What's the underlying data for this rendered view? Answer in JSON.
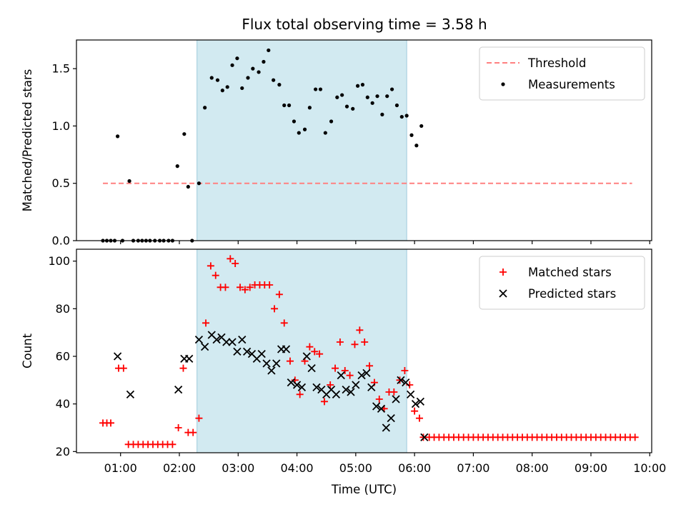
{
  "figure": {
    "title": "Flux total observing time = 3.58 h"
  },
  "chart_data": [
    {
      "type": "scatter",
      "title": "Flux total observing time = 3.58 h",
      "xlabel": "",
      "ylabel": "Matched/Predicted stars",
      "xlim": [
        "00:15",
        "10:02"
      ],
      "ylim": [
        0,
        1.75
      ],
      "yticks": [
        "0.0",
        "0.5",
        "1.0",
        "1.5"
      ],
      "grid": false,
      "legend_position": "top-right",
      "shaded_interval": {
        "start": "02:18",
        "end": "05:52",
        "color": "#add8e6"
      },
      "threshold": {
        "name": "Threshold",
        "value": 0.5,
        "x_start": "00:42",
        "x_end": "09:42",
        "color": "#ff8080"
      },
      "series": [
        {
          "name": "Measurements",
          "color": "#000000",
          "points": [
            [
              "00:42",
              0
            ],
            [
              "00:46",
              0
            ],
            [
              "00:50",
              0
            ],
            [
              "00:54",
              0
            ],
            [
              "00:57",
              0.91
            ],
            [
              "01:02",
              0
            ],
            [
              "01:09",
              0.52
            ],
            [
              "01:13",
              0
            ],
            [
              "01:18",
              0
            ],
            [
              "01:22",
              0
            ],
            [
              "01:26",
              0
            ],
            [
              "01:30",
              0
            ],
            [
              "01:35",
              0
            ],
            [
              "01:40",
              0
            ],
            [
              "01:44",
              0
            ],
            [
              "01:49",
              0
            ],
            [
              "01:53",
              0
            ],
            [
              "01:58",
              0.65
            ],
            [
              "02:05",
              0.93
            ],
            [
              "02:09",
              0.47
            ],
            [
              "02:13",
              0
            ],
            [
              "02:20",
              0.5
            ],
            [
              "02:26",
              1.16
            ],
            [
              "02:33",
              1.42
            ],
            [
              "02:39",
              1.4
            ],
            [
              "02:44",
              1.31
            ],
            [
              "02:49",
              1.34
            ],
            [
              "02:54",
              1.53
            ],
            [
              "02:59",
              1.59
            ],
            [
              "03:04",
              1.33
            ],
            [
              "03:10",
              1.42
            ],
            [
              "03:15",
              1.5
            ],
            [
              "03:21",
              1.47
            ],
            [
              "03:26",
              1.56
            ],
            [
              "03:31",
              1.66
            ],
            [
              "03:36",
              1.4
            ],
            [
              "03:42",
              1.36
            ],
            [
              "03:47",
              1.18
            ],
            [
              "03:52",
              1.18
            ],
            [
              "03:57",
              1.04
            ],
            [
              "04:02",
              0.94
            ],
            [
              "04:08",
              0.97
            ],
            [
              "04:13",
              1.16
            ],
            [
              "04:19",
              1.32
            ],
            [
              "04:24",
              1.32
            ],
            [
              "04:29",
              0.94
            ],
            [
              "04:35",
              1.04
            ],
            [
              "04:41",
              1.25
            ],
            [
              "04:46",
              1.27
            ],
            [
              "04:51",
              1.17
            ],
            [
              "04:57",
              1.15
            ],
            [
              "05:02",
              1.35
            ],
            [
              "05:07",
              1.36
            ],
            [
              "05:12",
              1.25
            ],
            [
              "05:17",
              1.2
            ],
            [
              "05:22",
              1.26
            ],
            [
              "05:27",
              1.1
            ],
            [
              "05:32",
              1.26
            ],
            [
              "05:37",
              1.32
            ],
            [
              "05:42",
              1.18
            ],
            [
              "05:47",
              1.08
            ],
            [
              "05:52",
              1.09
            ],
            [
              "05:57",
              0.92
            ],
            [
              "06:02",
              0.83
            ],
            [
              "06:07",
              1.0
            ]
          ]
        }
      ]
    },
    {
      "type": "scatter",
      "title": "",
      "xlabel": "Time (UTC)",
      "ylabel": "Count",
      "xlim": [
        "00:15",
        "10:02"
      ],
      "ylim": [
        19.5,
        105
      ],
      "yticks": [
        "20",
        "40",
        "60",
        "80",
        "100"
      ],
      "xticks": [
        "01:00",
        "02:00",
        "03:00",
        "04:00",
        "05:00",
        "06:00",
        "07:00",
        "08:00",
        "09:00",
        "10:00"
      ],
      "grid": false,
      "legend_position": "top-right",
      "shaded_interval": {
        "start": "02:18",
        "end": "05:52",
        "color": "#add8e6"
      },
      "series": [
        {
          "name": "Matched stars",
          "marker": "plus",
          "color": "#ff0000",
          "points": [
            [
              "00:42",
              32
            ],
            [
              "00:46",
              32
            ],
            [
              "00:50",
              32
            ],
            [
              "00:58",
              55
            ],
            [
              "01:03",
              55
            ],
            [
              "01:08",
              23
            ],
            [
              "01:13",
              23
            ],
            [
              "01:18",
              23
            ],
            [
              "01:23",
              23
            ],
            [
              "01:28",
              23
            ],
            [
              "01:33",
              23
            ],
            [
              "01:38",
              23
            ],
            [
              "01:43",
              23
            ],
            [
              "01:48",
              23
            ],
            [
              "01:53",
              23
            ],
            [
              "01:59",
              30
            ],
            [
              "02:04",
              55
            ],
            [
              "02:09",
              28
            ],
            [
              "02:14",
              28
            ],
            [
              "02:20",
              34
            ],
            [
              "02:27",
              74
            ],
            [
              "02:32",
              98
            ],
            [
              "02:37",
              94
            ],
            [
              "02:42",
              89
            ],
            [
              "02:47",
              89
            ],
            [
              "02:52",
              101
            ],
            [
              "02:57",
              99
            ],
            [
              "03:02",
              89
            ],
            [
              "03:07",
              88
            ],
            [
              "03:12",
              89
            ],
            [
              "03:17",
              90
            ],
            [
              "03:22",
              90
            ],
            [
              "03:27",
              90
            ],
            [
              "03:32",
              90
            ],
            [
              "03:37",
              80
            ],
            [
              "03:42",
              86
            ],
            [
              "03:47",
              74
            ],
            [
              "03:53",
              58
            ],
            [
              "03:58",
              50
            ],
            [
              "04:03",
              44
            ],
            [
              "04:08",
              58
            ],
            [
              "04:13",
              64
            ],
            [
              "04:18",
              62
            ],
            [
              "04:23",
              61
            ],
            [
              "04:28",
              41
            ],
            [
              "04:34",
              48
            ],
            [
              "04:39",
              55
            ],
            [
              "04:44",
              66
            ],
            [
              "04:49",
              54
            ],
            [
              "04:54",
              52
            ],
            [
              "04:59",
              65
            ],
            [
              "05:04",
              71
            ],
            [
              "05:09",
              66
            ],
            [
              "05:14",
              56
            ],
            [
              "05:19",
              49
            ],
            [
              "05:24",
              42
            ],
            [
              "05:29",
              38
            ],
            [
              "05:34",
              45
            ],
            [
              "05:39",
              45
            ],
            [
              "05:45",
              50
            ],
            [
              "05:50",
              54
            ],
            [
              "05:55",
              48
            ],
            [
              "06:00",
              37
            ],
            [
              "06:05",
              34
            ],
            [
              "06:09",
              26
            ],
            [
              "06:15",
              26
            ],
            [
              "06:20",
              26
            ],
            [
              "06:25",
              26
            ],
            [
              "06:30",
              26
            ],
            [
              "06:35",
              26
            ],
            [
              "06:40",
              26
            ],
            [
              "06:45",
              26
            ],
            [
              "06:50",
              26
            ],
            [
              "06:55",
              26
            ],
            [
              "07:00",
              26
            ],
            [
              "07:05",
              26
            ],
            [
              "07:10",
              26
            ],
            [
              "07:15",
              26
            ],
            [
              "07:20",
              26
            ],
            [
              "07:25",
              26
            ],
            [
              "07:30",
              26
            ],
            [
              "07:35",
              26
            ],
            [
              "07:40",
              26
            ],
            [
              "07:45",
              26
            ],
            [
              "07:50",
              26
            ],
            [
              "07:55",
              26
            ],
            [
              "08:00",
              26
            ],
            [
              "08:05",
              26
            ],
            [
              "08:10",
              26
            ],
            [
              "08:15",
              26
            ],
            [
              "08:20",
              26
            ],
            [
              "08:25",
              26
            ],
            [
              "08:30",
              26
            ],
            [
              "08:35",
              26
            ],
            [
              "08:40",
              26
            ],
            [
              "08:45",
              26
            ],
            [
              "08:50",
              26
            ],
            [
              "08:55",
              26
            ],
            [
              "09:00",
              26
            ],
            [
              "09:05",
              26
            ],
            [
              "09:10",
              26
            ],
            [
              "09:15",
              26
            ],
            [
              "09:20",
              26
            ],
            [
              "09:25",
              26
            ],
            [
              "09:30",
              26
            ],
            [
              "09:35",
              26
            ],
            [
              "09:40",
              26
            ],
            [
              "09:45",
              26
            ]
          ]
        },
        {
          "name": "Predicted stars",
          "marker": "x",
          "color": "#000000",
          "points": [
            [
              "00:57",
              60
            ],
            [
              "01:10",
              44
            ],
            [
              "01:59",
              46
            ],
            [
              "02:05",
              59
            ],
            [
              "02:10",
              59
            ],
            [
              "02:20",
              67
            ],
            [
              "02:26",
              64
            ],
            [
              "02:33",
              69
            ],
            [
              "02:38",
              67
            ],
            [
              "02:43",
              68
            ],
            [
              "02:48",
              66
            ],
            [
              "02:54",
              66
            ],
            [
              "02:59",
              62
            ],
            [
              "03:04",
              67
            ],
            [
              "03:09",
              62
            ],
            [
              "03:14",
              61
            ],
            [
              "03:19",
              59
            ],
            [
              "03:24",
              61
            ],
            [
              "03:29",
              57
            ],
            [
              "03:34",
              54
            ],
            [
              "03:39",
              57
            ],
            [
              "03:44",
              63
            ],
            [
              "03:49",
              63
            ],
            [
              "03:54",
              49
            ],
            [
              "04:00",
              48
            ],
            [
              "04:05",
              47
            ],
            [
              "04:10",
              60
            ],
            [
              "04:15",
              55
            ],
            [
              "04:20",
              47
            ],
            [
              "04:25",
              46
            ],
            [
              "04:30",
              44
            ],
            [
              "04:35",
              46
            ],
            [
              "04:40",
              44
            ],
            [
              "04:45",
              52
            ],
            [
              "04:50",
              46
            ],
            [
              "04:55",
              45
            ],
            [
              "05:00",
              48
            ],
            [
              "05:06",
              52
            ],
            [
              "05:11",
              53
            ],
            [
              "05:16",
              47
            ],
            [
              "05:21",
              39
            ],
            [
              "05:26",
              38
            ],
            [
              "05:31",
              30
            ],
            [
              "05:36",
              34
            ],
            [
              "05:41",
              42
            ],
            [
              "05:46",
              50
            ],
            [
              "05:51",
              49
            ],
            [
              "05:56",
              44
            ],
            [
              "06:01",
              40
            ],
            [
              "06:06",
              41
            ],
            [
              "06:10",
              26
            ]
          ]
        }
      ]
    }
  ]
}
